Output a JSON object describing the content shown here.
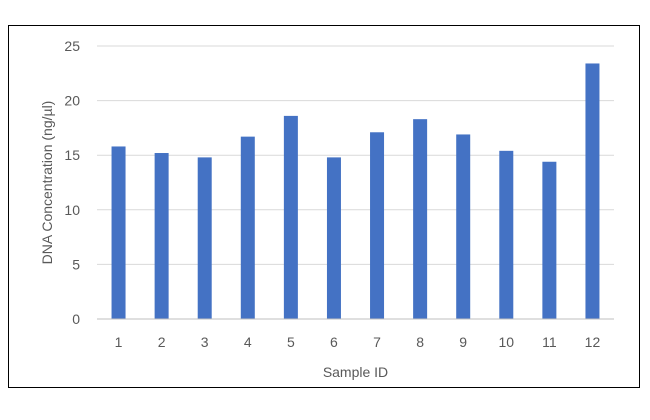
{
  "chart_data": {
    "type": "bar",
    "title": "",
    "xlabel": "Sample ID",
    "ylabel": "DNA Concentration (ng/µl)",
    "categories": [
      "1",
      "2",
      "3",
      "4",
      "5",
      "6",
      "7",
      "8",
      "9",
      "10",
      "11",
      "12"
    ],
    "values": [
      15.8,
      15.2,
      14.8,
      16.7,
      18.6,
      14.8,
      17.1,
      18.3,
      16.9,
      15.4,
      14.4,
      23.4
    ],
    "ylim": [
      0,
      25
    ],
    "yticks": [
      0,
      5,
      10,
      15,
      20,
      25
    ],
    "grid": true,
    "legend": "none",
    "bar_color": "#4472c4"
  }
}
